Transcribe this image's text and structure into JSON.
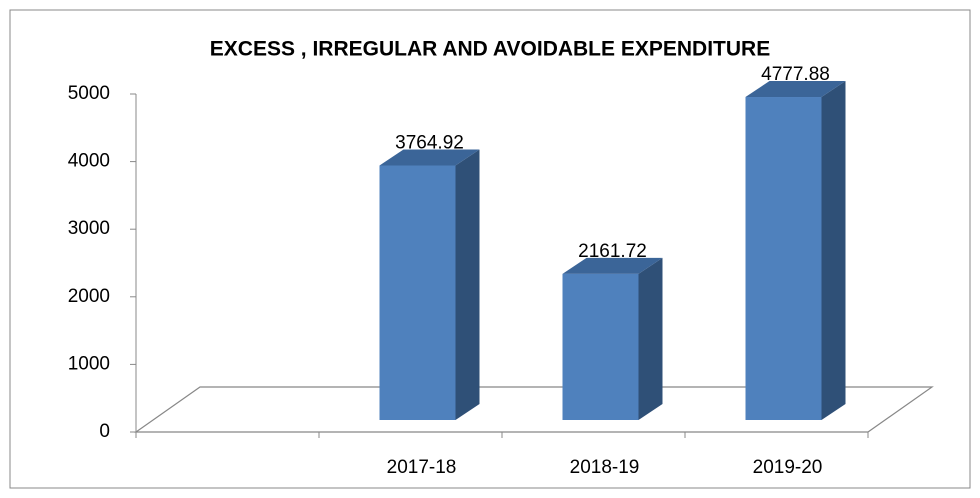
{
  "chart_data": {
    "type": "bar3d",
    "title": "EXCESS , IRREGULAR AND AVOIDABLE EXPENDITURE",
    "categories": [
      null,
      "2017-18",
      "2018-19",
      "2019-20"
    ],
    "values": [
      null,
      3764.92,
      2161.72,
      4777.88
    ],
    "color": "#4f81bd",
    "ylim": [
      0,
      5000
    ],
    "yticks": [
      0,
      1000,
      2000,
      3000,
      4000,
      5000
    ],
    "grid": false
  }
}
